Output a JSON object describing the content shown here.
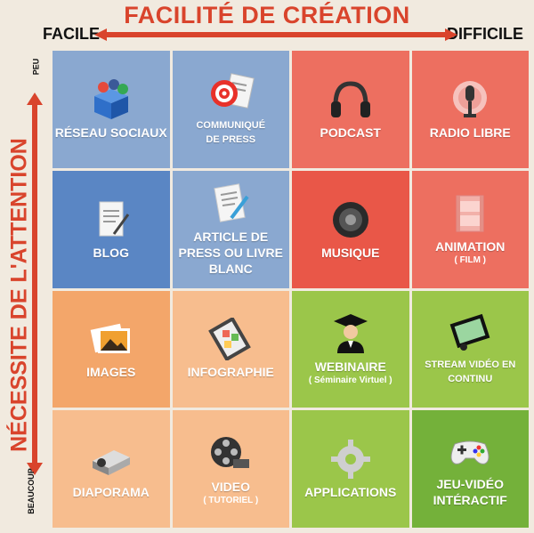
{
  "header": {
    "title": "FACILITÉ DE CRÉATION",
    "left": "FACILE",
    "right": "DIFFICILE"
  },
  "side": {
    "title": "NÉCESSITE DE L'ATTENTION",
    "top": "PEU",
    "bottom": "BEAUCOUP"
  },
  "cells": [
    {
      "label": "RÉSEAU SOCIAUX",
      "sub": ""
    },
    {
      "label": "COMMUNIQUÉ DE PRESS",
      "sub": ""
    },
    {
      "label": "PODCAST",
      "sub": ""
    },
    {
      "label": "RADIO LIBRE",
      "sub": ""
    },
    {
      "label": "BLOG",
      "sub": ""
    },
    {
      "label": "ARTICLE DE PRESS OU LIVRE BLANC",
      "sub": ""
    },
    {
      "label": "MUSIQUE",
      "sub": ""
    },
    {
      "label": "ANIMATION",
      "sub": "( FILM )"
    },
    {
      "label": "IMAGES",
      "sub": ""
    },
    {
      "label": "INFOGRAPHIE",
      "sub": ""
    },
    {
      "label": "WEBINAIRE",
      "sub": "( Séminaire Virtuel )"
    },
    {
      "label": "STREAM VIDÉO EN CONTINU",
      "sub": ""
    },
    {
      "label": "DIAPORAMA",
      "sub": ""
    },
    {
      "label": "VIDEO",
      "sub": "( TUTORIEL )"
    },
    {
      "label": "APPLICATIONS",
      "sub": ""
    },
    {
      "label": "JEU-VIDÉO INTÉRACTIF",
      "sub": ""
    }
  ],
  "colors": {
    "accent": "#d9442c",
    "blue_light": "#8aa8d0",
    "blue_dark": "#5a86c4",
    "red_light": "#ed6f60",
    "red_dark": "#e95748",
    "orange_dark": "#f3a66a",
    "orange_light": "#f7bd8e",
    "green_light": "#9bc64a",
    "green_dark": "#74b13a"
  }
}
